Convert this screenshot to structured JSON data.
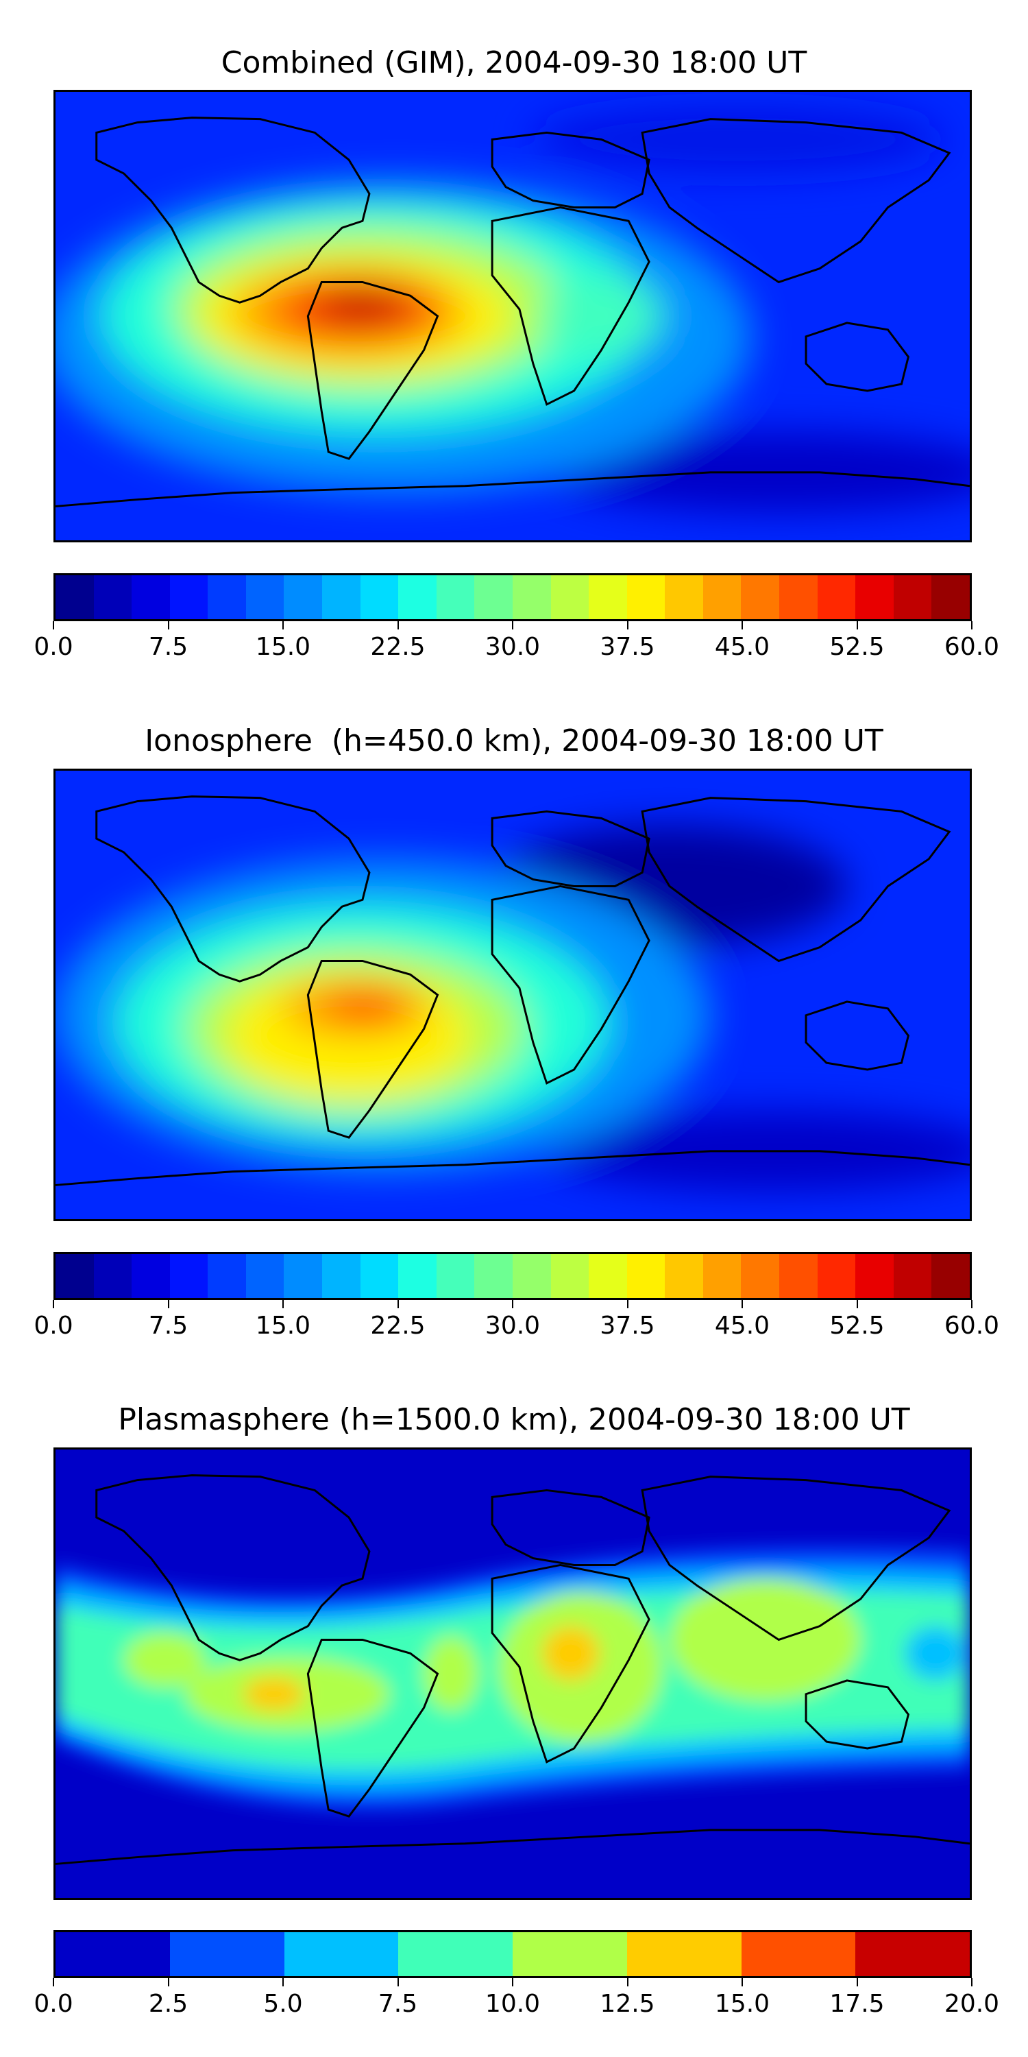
{
  "panels": [
    {
      "title": "Combined (GIM), 2004-09-30 18:00 UT",
      "map": "combined",
      "colorbar": {
        "min": 0,
        "max": 60,
        "ticks": [
          "0.0",
          "7.5",
          "15.0",
          "22.5",
          "30.0",
          "37.5",
          "45.0",
          "52.5",
          "60.0"
        ],
        "colors": [
          "#00008f",
          "#0000b8",
          "#0000e0",
          "#0014ff",
          "#003cff",
          "#0064ff",
          "#008cff",
          "#00b4ff",
          "#00dcff",
          "#1dffe2",
          "#45ffba",
          "#6dff92",
          "#95ff6a",
          "#bdff42",
          "#e5ff1a",
          "#fff000",
          "#ffc800",
          "#ffa000",
          "#ff7800",
          "#ff5000",
          "#ff2800",
          "#e80000",
          "#c00000",
          "#980000"
        ]
      }
    },
    {
      "title": "Ionosphere  (h=450.0 km), 2004-09-30 18:00 UT",
      "map": "ionosphere",
      "colorbar": {
        "min": 0,
        "max": 60,
        "ticks": [
          "0.0",
          "7.5",
          "15.0",
          "22.5",
          "30.0",
          "37.5",
          "45.0",
          "52.5",
          "60.0"
        ],
        "colors": [
          "#00008f",
          "#0000b8",
          "#0000e0",
          "#0014ff",
          "#003cff",
          "#0064ff",
          "#008cff",
          "#00b4ff",
          "#00dcff",
          "#1dffe2",
          "#45ffba",
          "#6dff92",
          "#95ff6a",
          "#bdff42",
          "#e5ff1a",
          "#fff000",
          "#ffc800",
          "#ffa000",
          "#ff7800",
          "#ff5000",
          "#ff2800",
          "#e80000",
          "#c00000",
          "#980000"
        ]
      }
    },
    {
      "title": "Plasmasphere (h=1500.0 km), 2004-09-30 18:00 UT",
      "map": "plasmasphere",
      "colorbar": {
        "min": 0,
        "max": 20,
        "ticks": [
          "0.0",
          "2.5",
          "5.0",
          "7.5",
          "10.0",
          "12.5",
          "15.0",
          "17.5",
          "20.0"
        ],
        "colors": [
          "#0000c8",
          "#0050ff",
          "#00c0ff",
          "#40ffb8",
          "#b0ff48",
          "#ffcc00",
          "#ff5000",
          "#c80000"
        ]
      }
    }
  ]
}
